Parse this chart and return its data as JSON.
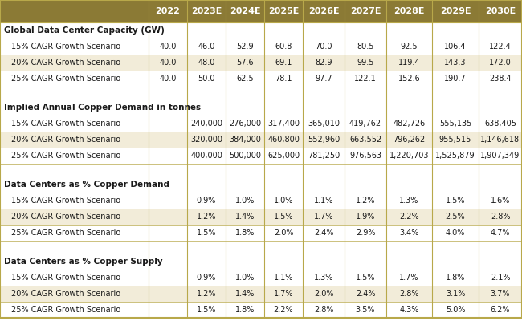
{
  "header_cols": [
    "",
    "2022",
    "2023E",
    "2024E",
    "2025E",
    "2026E",
    "2027E",
    "2028E",
    "2029E",
    "2030E"
  ],
  "header_bg": "#8B7A35",
  "header_text_color": "#FFFFFF",
  "row_alt_bg": "#F2ECD9",
  "row_white_bg": "#FFFFFF",
  "border_color": "#B8A84A",
  "sections": [
    {
      "label": "Global Data Center Capacity (GW)",
      "rows": [
        {
          "label": "15% CAGR Growth Scenario",
          "values": [
            "40.0",
            "46.0",
            "52.9",
            "60.8",
            "70.0",
            "80.5",
            "92.5",
            "106.4",
            "122.4"
          ]
        },
        {
          "label": "20% CAGR Growth Scenario",
          "values": [
            "40.0",
            "48.0",
            "57.6",
            "69.1",
            "82.9",
            "99.5",
            "119.4",
            "143.3",
            "172.0"
          ]
        },
        {
          "label": "25% CAGR Growth Scenario",
          "values": [
            "40.0",
            "50.0",
            "62.5",
            "78.1",
            "97.7",
            "122.1",
            "152.6",
            "190.7",
            "238.4"
          ]
        }
      ]
    },
    {
      "label": "Implied Annual Copper Demand in tonnes",
      "rows": [
        {
          "label": "15% CAGR Growth Scenario",
          "values": [
            "",
            "240,000",
            "276,000",
            "317,400",
            "365,010",
            "419,762",
            "482,726",
            "555,135",
            "638,405"
          ]
        },
        {
          "label": "20% CAGR Growth Scenario",
          "values": [
            "",
            "320,000",
            "384,000",
            "460,800",
            "552,960",
            "663,552",
            "796,262",
            "955,515",
            "1,146,618"
          ]
        },
        {
          "label": "25% CAGR Growth Scenario",
          "values": [
            "",
            "400,000",
            "500,000",
            "625,000",
            "781,250",
            "976,563",
            "1,220,703",
            "1,525,879",
            "1,907,349"
          ]
        }
      ]
    },
    {
      "label": "Data Centers as % Copper Demand",
      "rows": [
        {
          "label": "15% CAGR Growth Scenario",
          "values": [
            "",
            "0.9%",
            "1.0%",
            "1.0%",
            "1.1%",
            "1.2%",
            "1.3%",
            "1.5%",
            "1.6%"
          ]
        },
        {
          "label": "20% CAGR Growth Scenario",
          "values": [
            "",
            "1.2%",
            "1.4%",
            "1.5%",
            "1.7%",
            "1.9%",
            "2.2%",
            "2.5%",
            "2.8%"
          ]
        },
        {
          "label": "25% CAGR Growth Scenario",
          "values": [
            "",
            "1.5%",
            "1.8%",
            "2.0%",
            "2.4%",
            "2.9%",
            "3.4%",
            "4.0%",
            "4.7%"
          ]
        }
      ]
    },
    {
      "label": "Data Centers as % Copper Supply",
      "rows": [
        {
          "label": "15% CAGR Growth Scenario",
          "values": [
            "",
            "0.9%",
            "1.0%",
            "1.1%",
            "1.3%",
            "1.5%",
            "1.7%",
            "1.8%",
            "2.1%"
          ]
        },
        {
          "label": "20% CAGR Growth Scenario",
          "values": [
            "",
            "1.2%",
            "1.4%",
            "1.7%",
            "2.0%",
            "2.4%",
            "2.8%",
            "3.1%",
            "3.7%"
          ]
        },
        {
          "label": "25% CAGR Growth Scenario",
          "values": [
            "",
            "1.5%",
            "1.8%",
            "2.2%",
            "2.8%",
            "3.5%",
            "4.3%",
            "5.0%",
            "6.2%"
          ]
        }
      ]
    }
  ]
}
